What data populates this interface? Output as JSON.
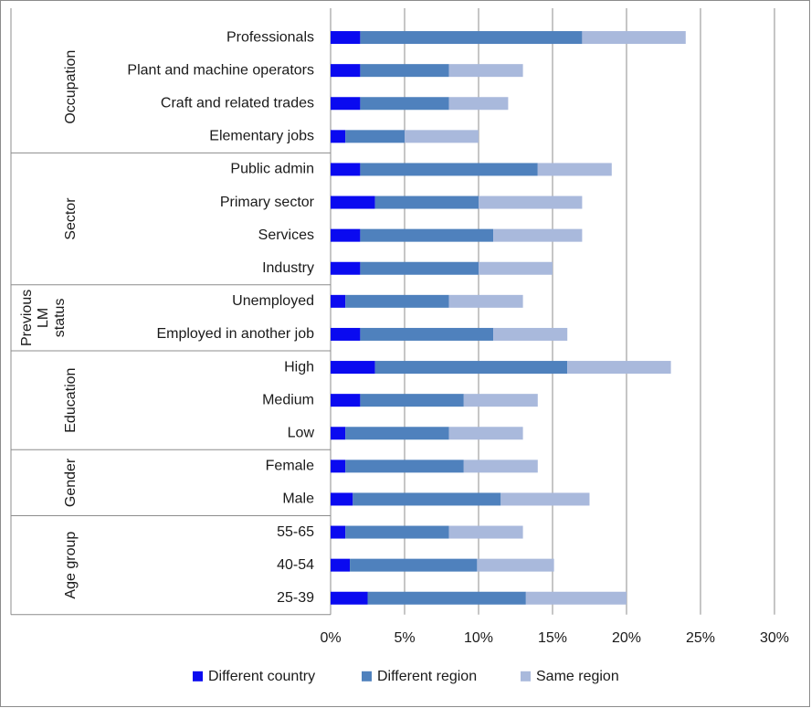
{
  "chart_data": {
    "type": "bar",
    "stacked": true,
    "orientation": "horizontal",
    "grid": true,
    "legend_placement": "bottom",
    "xlim": [
      0,
      0.3
    ],
    "x_ticks": [
      "0%",
      "5%",
      "10%",
      "15%",
      "20%",
      "25%",
      "30%"
    ],
    "categories": [
      "Professionals",
      "Plant and machine operators",
      "Craft and related trades",
      "Elementary jobs",
      "Public admin",
      "Primary sector",
      "Services",
      "Industry",
      "Unemployed",
      "Employed in another job",
      "High",
      "Medium",
      "Low",
      "Female",
      "Male",
      "55-65",
      "40-54",
      "25-39"
    ],
    "groups": [
      {
        "label": "Occupation",
        "start": 0,
        "end": 3
      },
      {
        "label": "Sector",
        "start": 4,
        "end": 7
      },
      {
        "label": "Previous LM status",
        "lines": [
          "Previous",
          "LM",
          "status"
        ],
        "start": 8,
        "end": 9
      },
      {
        "label": "Education",
        "start": 10,
        "end": 12
      },
      {
        "label": "Gender",
        "start": 13,
        "end": 14
      },
      {
        "label": "Age group",
        "start": 15,
        "end": 17
      }
    ],
    "series": [
      {
        "name": "Different country",
        "color": "#0a0af0",
        "values": [
          0.02,
          0.02,
          0.02,
          0.01,
          0.02,
          0.03,
          0.02,
          0.02,
          0.01,
          0.02,
          0.03,
          0.02,
          0.01,
          0.01,
          0.015,
          0.01,
          0.013,
          0.025
        ]
      },
      {
        "name": "Different region",
        "color": "#4f81bd",
        "values": [
          0.15,
          0.06,
          0.06,
          0.04,
          0.12,
          0.07,
          0.09,
          0.08,
          0.07,
          0.09,
          0.13,
          0.07,
          0.07,
          0.08,
          0.1,
          0.07,
          0.086,
          0.107
        ]
      },
      {
        "name": "Same region",
        "color": "#a9b9dc",
        "values": [
          0.07,
          0.05,
          0.04,
          0.05,
          0.05,
          0.07,
          0.06,
          0.05,
          0.05,
          0.05,
          0.07,
          0.05,
          0.05,
          0.05,
          0.06,
          0.05,
          0.052,
          0.068
        ]
      }
    ]
  }
}
